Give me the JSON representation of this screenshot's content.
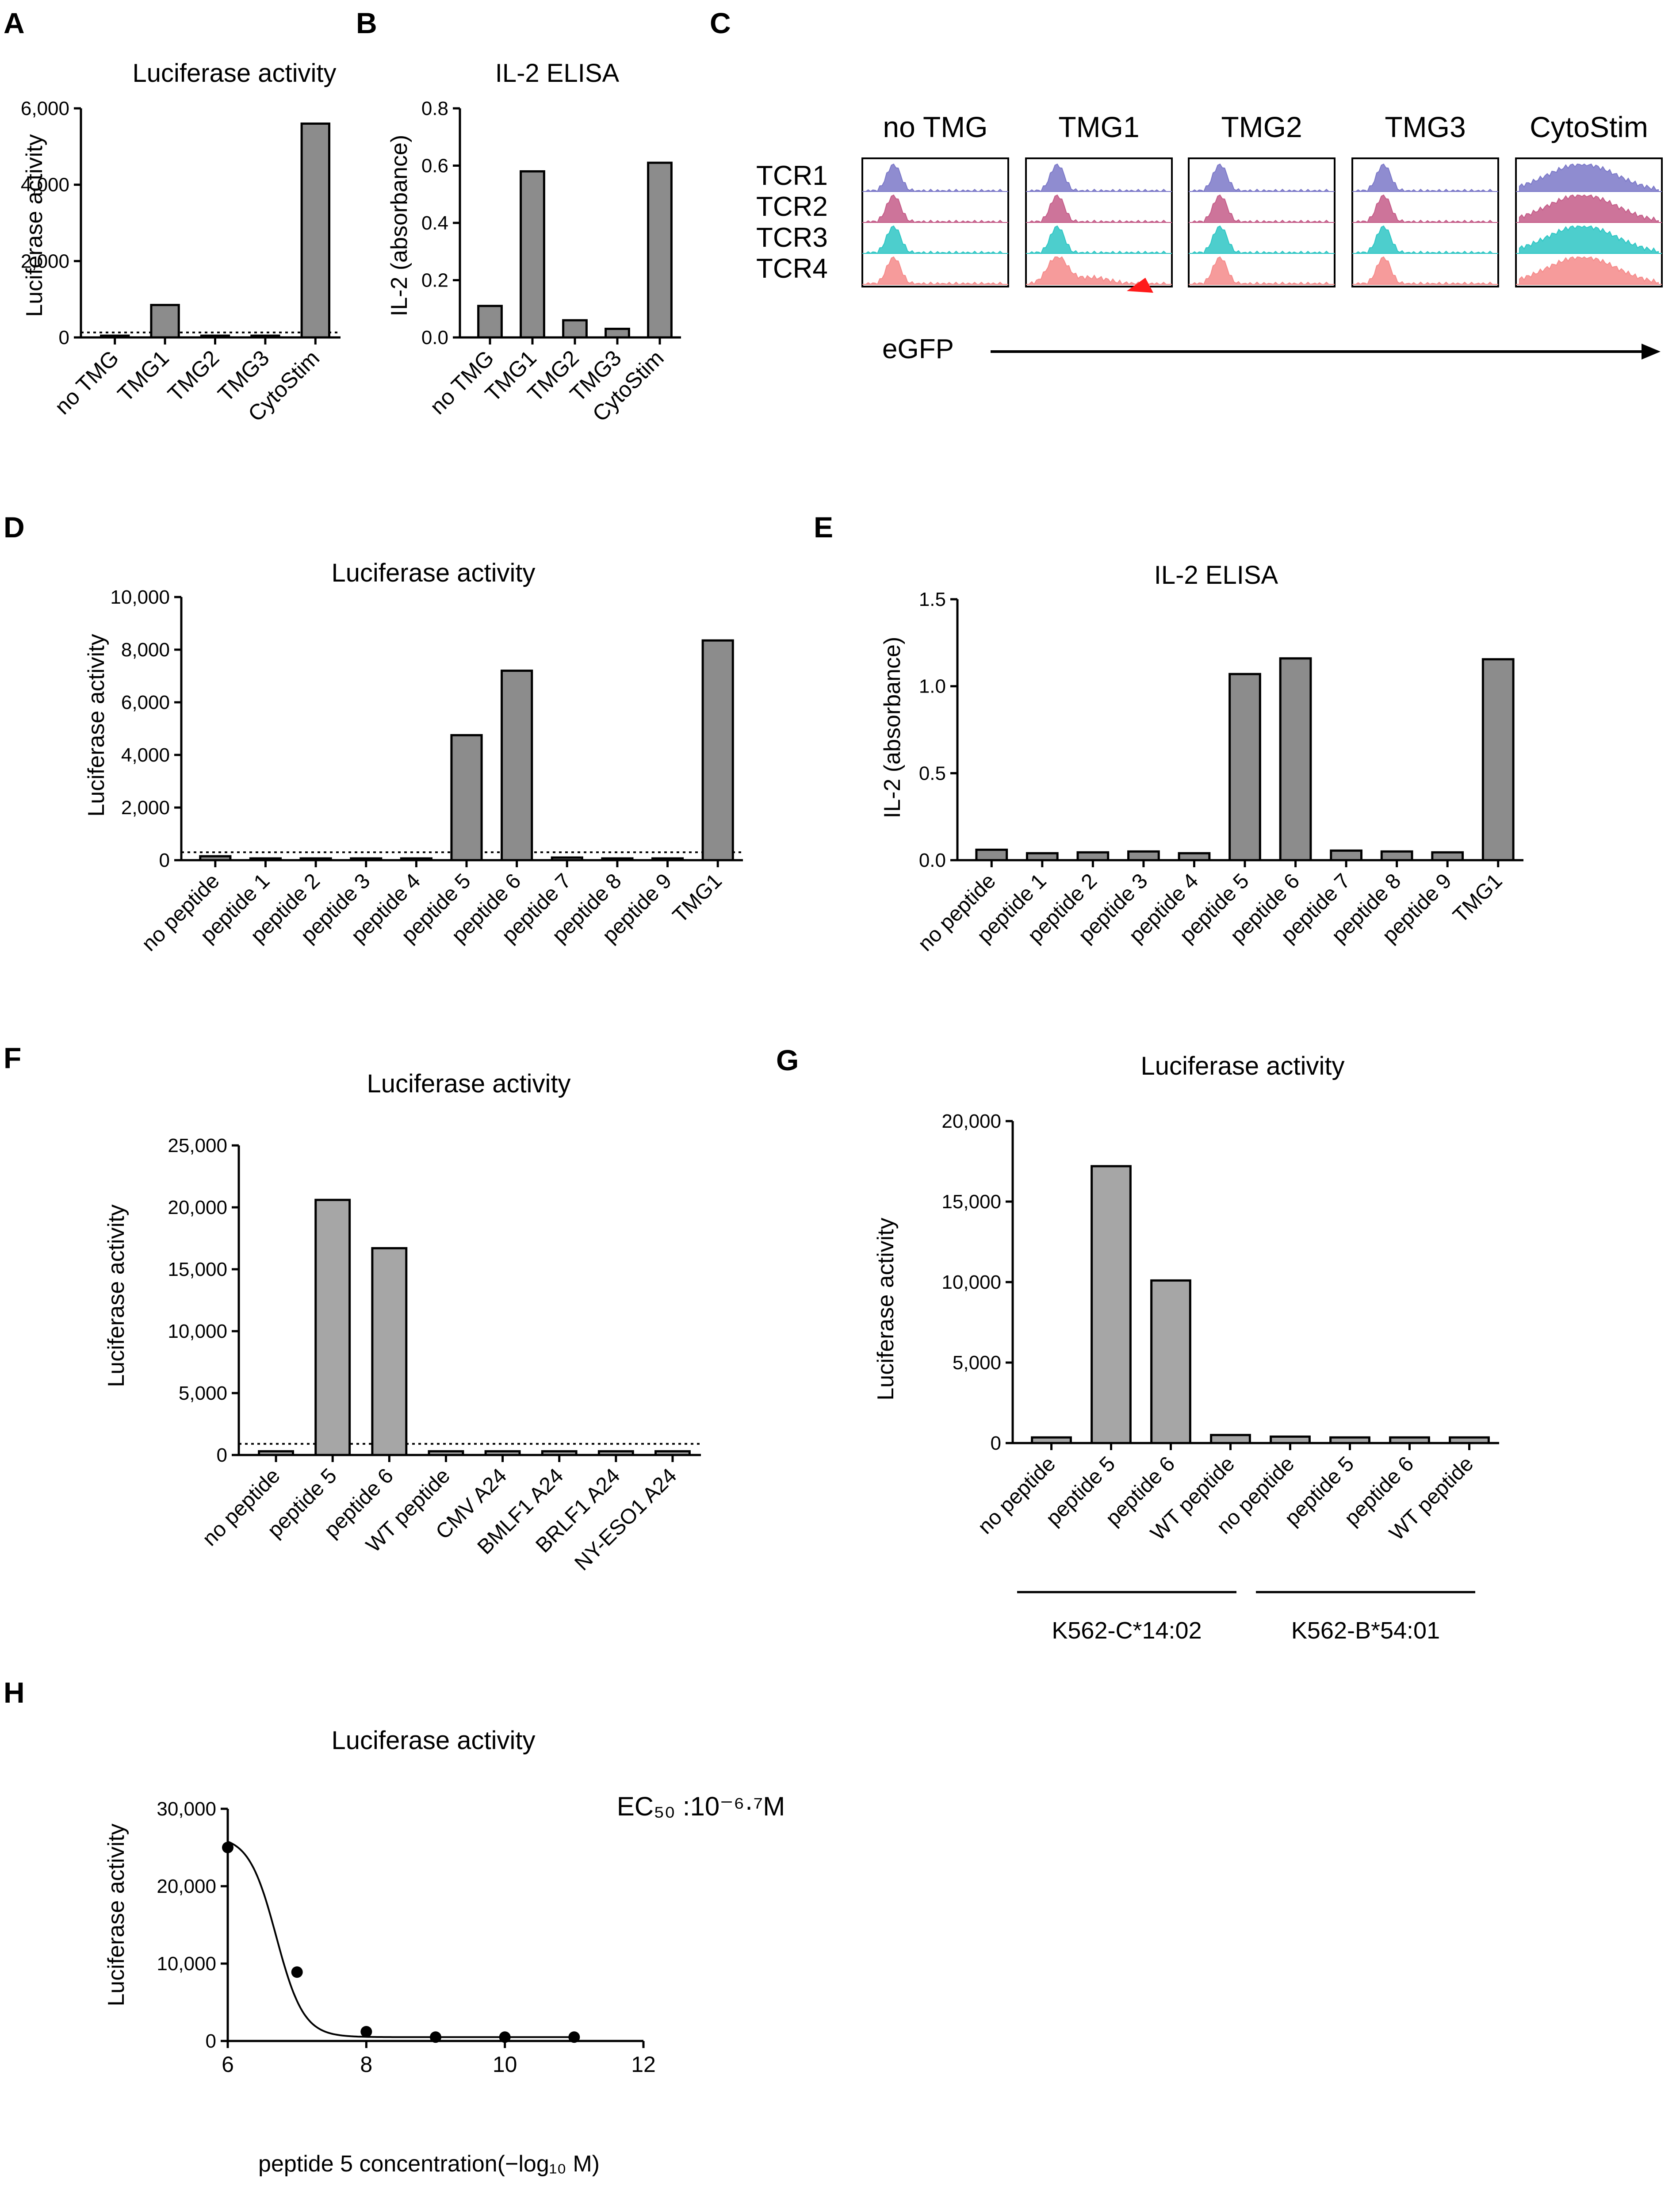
{
  "colors": {
    "bar_dark": "#8c8c8c",
    "bar_light": "#a6a6a6",
    "tcr1": "#7b78c8",
    "tcr2": "#c45c88",
    "tcr3": "#2ec6c4",
    "tcr4": "#f58a8a",
    "arrowhead": "#ff1a1a"
  },
  "panels": {
    "A": {
      "label": "A",
      "chart_data": {
        "type": "bar",
        "title": "Luciferase activity",
        "ylabel": "Luciferase activity",
        "categories": [
          "no TMG",
          "TMG1",
          "TMG2",
          "TMG3",
          "CytoStim"
        ],
        "values": [
          30,
          850,
          30,
          30,
          5600
        ],
        "ylim": [
          0,
          6000
        ],
        "yticks": [
          0,
          2000,
          4000,
          6000
        ],
        "ytick_labels": [
          "0",
          "2,000",
          "4,000",
          "6,000"
        ],
        "dotted_threshold": 130
      }
    },
    "B": {
      "label": "B",
      "chart_data": {
        "type": "bar",
        "title": "IL-2 ELISA",
        "ylabel": "IL-2 (absorbance)",
        "categories": [
          "no TMG",
          "TMG1",
          "TMG2",
          "TMG3",
          "CytoStim"
        ],
        "values": [
          0.11,
          0.58,
          0.06,
          0.03,
          0.61
        ],
        "ylim": [
          0,
          0.8
        ],
        "yticks": [
          0,
          0.2,
          0.4,
          0.6,
          0.8
        ],
        "ytick_labels": [
          "0.0",
          "0.2",
          "0.4",
          "0.6",
          "0.8"
        ]
      }
    },
    "C": {
      "label": "C",
      "columns": [
        "no TMG",
        "TMG1",
        "TMG2",
        "TMG3",
        "CytoStim"
      ],
      "rows": [
        "TCR1",
        "TCR2",
        "TCR3",
        "TCR4"
      ],
      "xlabel": "eGFP"
    },
    "D": {
      "label": "D",
      "chart_data": {
        "type": "bar",
        "title": "Luciferase activity",
        "ylabel": "Luciferase activity",
        "categories": [
          "no peptide",
          "peptide 1",
          "peptide 2",
          "peptide 3",
          "peptide 4",
          "peptide 5",
          "peptide 6",
          "peptide 7",
          "peptide 8",
          "peptide 9",
          "TMG1"
        ],
        "values": [
          150,
          60,
          60,
          10,
          10,
          4750,
          7200,
          100,
          60,
          60,
          8350
        ],
        "ylim": [
          0,
          10000
        ],
        "yticks": [
          0,
          2000,
          4000,
          6000,
          8000,
          10000
        ],
        "ytick_labels": [
          "0",
          "2,000",
          "4,000",
          "6,000",
          "8,000",
          "10,000"
        ],
        "dotted_threshold": 300
      }
    },
    "E": {
      "label": "E",
      "chart_data": {
        "type": "bar",
        "title": "IL-2 ELISA",
        "ylabel": "IL-2 (absorbance)",
        "categories": [
          "no peptide",
          "peptide 1",
          "peptide 2",
          "peptide 3",
          "peptide 4",
          "peptide 5",
          "peptide 6",
          "peptide 7",
          "peptide 8",
          "peptide 9",
          "TMG1"
        ],
        "values": [
          0.06,
          0.04,
          0.045,
          0.05,
          0.04,
          1.07,
          1.16,
          0.055,
          0.05,
          0.045,
          1.155
        ],
        "ylim": [
          0,
          1.5
        ],
        "yticks": [
          0,
          0.5,
          1.0,
          1.5
        ],
        "ytick_labels": [
          "0.0",
          "0.5",
          "1.0",
          "1.5"
        ]
      }
    },
    "F": {
      "label": "F",
      "chart_data": {
        "type": "bar",
        "title": "Luciferase activity",
        "ylabel": "Luciferase activity",
        "categories": [
          "no peptide",
          "peptide 5",
          "peptide 6",
          "WT peptide",
          "CMV A24",
          "BMLF1 A24",
          "BRLF1 A24",
          "NY-ESO1 A24"
        ],
        "values": [
          300,
          20600,
          16700,
          300,
          300,
          300,
          300,
          300
        ],
        "ylim": [
          0,
          25000
        ],
        "yticks": [
          0,
          5000,
          10000,
          15000,
          20000,
          25000
        ],
        "ytick_labels": [
          "0",
          "5,000",
          "10,000",
          "15,000",
          "20,000",
          "25,000"
        ],
        "dotted_threshold": 900
      }
    },
    "G": {
      "label": "G",
      "chart_data": {
        "type": "bar",
        "title": "Luciferase activity",
        "ylabel": "Luciferase activity",
        "categories": [
          "no peptide",
          "peptide 5",
          "peptide 6",
          "WT peptide",
          "no peptide",
          "peptide 5",
          "peptide 6",
          "WT peptide"
        ],
        "values": [
          350,
          17200,
          10100,
          500,
          400,
          350,
          350,
          350
        ],
        "ylim": [
          0,
          20000
        ],
        "yticks": [
          0,
          5000,
          10000,
          15000,
          20000
        ],
        "ytick_labels": [
          "0",
          "5,000",
          "10,000",
          "15,000",
          "20,000"
        ],
        "groups": [
          {
            "name": "K562-C*14:02",
            "start": 0,
            "end": 3
          },
          {
            "name": "K562-B*54:01",
            "start": 4,
            "end": 7
          }
        ]
      }
    },
    "H": {
      "label": "H",
      "chart_data": {
        "type": "line",
        "title": "Luciferase activity",
        "ylabel": "Luciferase activity",
        "xlabel": "peptide 5 concentration(−log₁₀ M)",
        "x": [
          6,
          7,
          8,
          9,
          10,
          11
        ],
        "y": [
          25000,
          8900,
          1200,
          500,
          500,
          500
        ],
        "xlim": [
          6,
          12
        ],
        "xticks": [
          6,
          8,
          10,
          12
        ],
        "xtick_labels": [
          "6",
          "8",
          "10",
          "12"
        ],
        "ylim": [
          0,
          30000
        ],
        "yticks": [
          0,
          10000,
          20000,
          30000
        ],
        "ytick_labels": [
          "0",
          "10,000",
          "20,000",
          "30,000"
        ],
        "annotation": "EC₅₀ :10⁻⁶·⁷M"
      }
    }
  }
}
